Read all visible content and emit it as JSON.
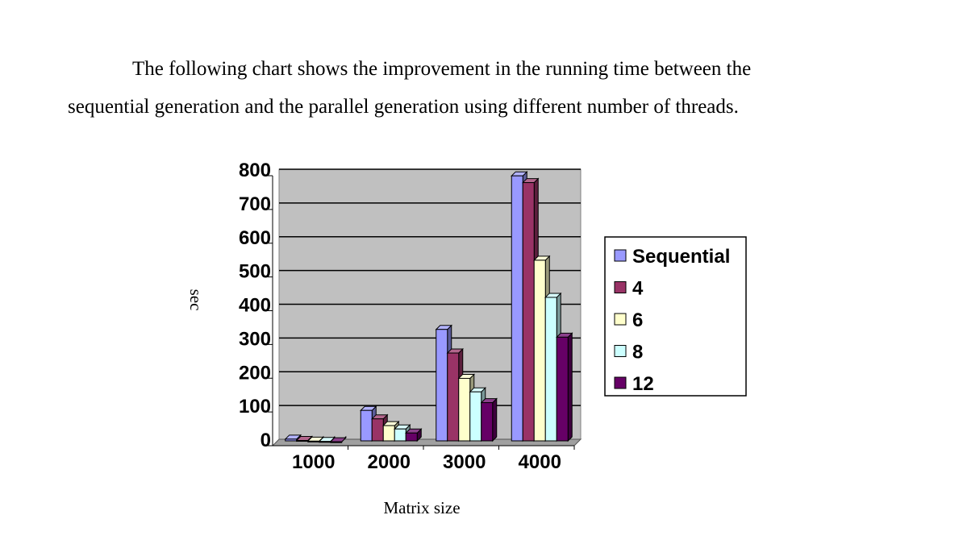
{
  "paragraph": {
    "line1": "The following chart shows the improvement in the running time between the",
    "line2": "sequential generation and the parallel generation using different number of threads."
  },
  "chart_data": {
    "type": "bar",
    "title": "",
    "xlabel": "Matrix size",
    "ylabel": "sec",
    "categories": [
      "1000",
      "2000",
      "3000",
      "4000"
    ],
    "ylim": [
      0,
      800
    ],
    "yticks": [
      "0",
      "100",
      "200",
      "300",
      "400",
      "500",
      "600",
      "700",
      "800"
    ],
    "grid": true,
    "legend_position": "right",
    "series": [
      {
        "name": "Sequential",
        "values": [
          10,
          95,
          335,
          790
        ],
        "color": "#9999ff"
      },
      {
        "name": "4",
        "values": [
          6,
          70,
          265,
          770
        ],
        "color": "#993366"
      },
      {
        "name": "6",
        "values": [
          4,
          50,
          190,
          540
        ],
        "color": "#ffffcc"
      },
      {
        "name": "8",
        "values": [
          3,
          40,
          150,
          430
        ],
        "color": "#ccffff"
      },
      {
        "name": "12",
        "values": [
          2,
          28,
          118,
          312
        ],
        "color": "#660066"
      }
    ]
  }
}
